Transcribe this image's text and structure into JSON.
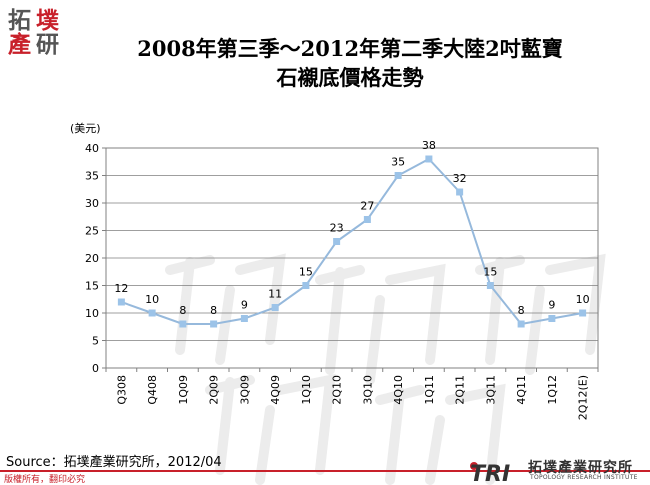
{
  "logo": {
    "chars": [
      "拓",
      "墣",
      "產",
      "研"
    ]
  },
  "title": {
    "line1": "2008年第三季～2012年第二季大陸2吋藍寶",
    "line2": "石襯底價格走勢"
  },
  "source": "Source：拓墣產業研究所，2012/04",
  "copyright": "版權所有，翻印必究",
  "branding": {
    "mark": "TRI",
    "name": "拓墣產業研究所",
    "subtitle": "TOPOLOGY RESEARCH INSTITUTE"
  },
  "colors": {
    "line": "#96b9dc",
    "marker": "#9cc3e8",
    "accent": "#c8202a"
  },
  "chart_data": {
    "type": "line",
    "title": "2008年第三季～2012年第二季大陸2吋藍寶石襯底價格走勢",
    "ylabel": "(美元)",
    "xlabel": "",
    "ylim": [
      0,
      40
    ],
    "yticks": [
      0,
      5,
      10,
      15,
      20,
      25,
      30,
      35,
      40
    ],
    "grid": true,
    "categories": [
      "Q308",
      "Q408",
      "1Q09",
      "2Q09",
      "3Q09",
      "4Q09",
      "1Q10",
      "2Q10",
      "3Q10",
      "4Q10",
      "1Q11",
      "2Q11",
      "3Q11",
      "4Q11",
      "1Q12",
      "2Q12(E)"
    ],
    "series": [
      {
        "values": [
          12,
          10,
          8,
          8,
          9,
          11,
          15,
          23,
          27,
          35,
          38,
          32,
          15,
          8,
          9,
          10
        ]
      }
    ]
  }
}
